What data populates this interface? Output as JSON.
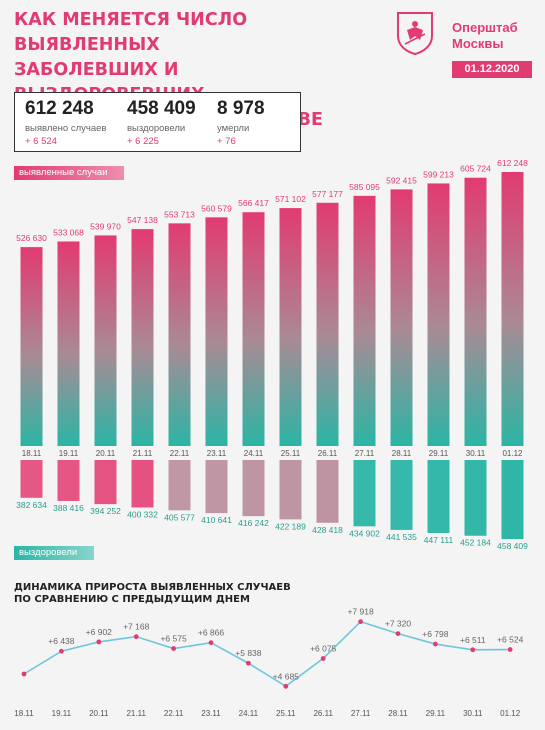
{
  "header": {
    "title_lines": [
      "КАК МЕНЯЕТСЯ ЧИСЛО ВЫЯВЛЕННЫХ",
      "ЗАБОЛЕВШИХ И ВЫЗДОРОВЕВШИХ",
      "ОТ КОРОНАВИРУСА В МОСКВЕ"
    ],
    "brand_lines": [
      "Оперштаб",
      "Москвы"
    ],
    "date": "01.12.2020"
  },
  "stats": [
    {
      "value": "612 248",
      "label": "выявлено случаев",
      "delta": "+ 6 524"
    },
    {
      "value": "458 409",
      "label": "выздоровели",
      "delta": "+ 6 225"
    },
    {
      "value": "8 978",
      "label": "умерли",
      "delta": "+ 76"
    }
  ],
  "labels": {
    "cases_badge": "выявленные случаи",
    "recovered_badge": "выздоровели",
    "trend_title_lines": [
      "ДИНАМИКА ПРИРОСТА ВЫЯВЛЕННЫХ СЛУЧАЕВ",
      "ПО СРАВНЕНИЮ С ПРЕДЫДУЩИМ ДНЕМ"
    ]
  },
  "colors": {
    "accent": "#e23b71",
    "teal": "#2bb5a5",
    "line": "#6ec6dd"
  },
  "chart_data": [
    {
      "type": "bar",
      "categories": [
        "18.11",
        "19.11",
        "20.11",
        "21.11",
        "22.11",
        "23.11",
        "24.11",
        "25.11",
        "26.11",
        "27.11",
        "28.11",
        "29.11",
        "30.11",
        "01.12"
      ],
      "series": [
        {
          "name": "выявленные случаи",
          "values": [
            526630,
            533068,
            539970,
            547138,
            553713,
            560579,
            566417,
            571102,
            577177,
            585095,
            592415,
            599213,
            605724,
            612248
          ]
        }
      ],
      "value_labels": [
        "526 630",
        "533 068",
        "539 970",
        "547 138",
        "553 713",
        "560 579",
        "566 417",
        "571 102",
        "577 177",
        "585 095",
        "592 415",
        "599 213",
        "605 724",
        "612 248"
      ]
    },
    {
      "type": "bar",
      "categories": [
        "18.11",
        "19.11",
        "20.11",
        "21.11",
        "22.11",
        "23.11",
        "24.11",
        "25.11",
        "26.11",
        "27.11",
        "28.11",
        "29.11",
        "30.11",
        "01.12"
      ],
      "series": [
        {
          "name": "выздоровели",
          "values": [
            382634,
            388416,
            394252,
            400332,
            405577,
            410641,
            416242,
            422189,
            428418,
            434902,
            441535,
            447111,
            452184,
            458409
          ]
        }
      ],
      "value_labels": [
        "382 634",
        "388 416",
        "394 252",
        "400 332",
        "405 577",
        "410 641",
        "416 242",
        "422 189",
        "428 418",
        "434 902",
        "441 535",
        "447 111",
        "452 184",
        "458 409"
      ]
    },
    {
      "type": "line",
      "title": "ДИНАМИКА ПРИРОСТА ВЫЯВЛЕННЫХ СЛУЧАЕВ ПО СРАВНЕНИЮ С ПРЕДЫДУЩИМ ДНЕМ",
      "categories": [
        "18.11",
        "19.11",
        "20.11",
        "21.11",
        "22.11",
        "23.11",
        "24.11",
        "25.11",
        "26.11",
        "27.11",
        "28.11",
        "29.11",
        "30.11",
        "01.12"
      ],
      "series": [
        {
          "values": [
            5300,
            6438,
            6902,
            7168,
            6575,
            6866,
            5838,
            4685,
            6075,
            7918,
            7320,
            6798,
            6511,
            6524
          ]
        }
      ],
      "value_labels": [
        "",
        "+6 438",
        "+6 902",
        "+7 168",
        "+6 575",
        "+6 866",
        "+5 838",
        "+4 685",
        "+6 075",
        "+7 918",
        "+7 320",
        "+6 798",
        "+6 511",
        "+6 524"
      ]
    }
  ]
}
